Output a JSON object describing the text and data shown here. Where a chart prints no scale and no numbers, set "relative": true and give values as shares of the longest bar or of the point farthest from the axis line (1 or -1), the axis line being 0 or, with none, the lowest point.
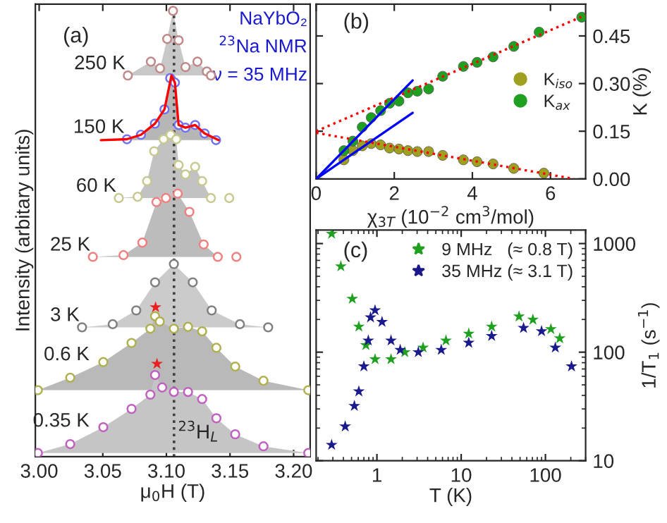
{
  "chart_data": [
    {
      "type": "scatter",
      "title": "(a)",
      "xlabel": "μ$_{0}$H (T)",
      "ylabel": "Intensity (arbitary units)",
      "relative": true,
      "tick_labels": "x",
      "marker": "circle",
      "legend": false,
      "xlim": [
        2.997,
        3.213
      ],
      "xticks": [
        {
          "value": 3.0,
          "label": "3.00"
        },
        {
          "value": 3.05,
          "label": "3.05"
        },
        {
          "value": 3.1,
          "label": "3.10"
        },
        {
          "value": 3.15,
          "label": "3.15"
        },
        {
          "value": 3.2,
          "label": "3.20"
        }
      ],
      "annotations": [
        "NaYbO₂",
        "$^{23}$Na NMR",
        "ν = 35 MHz"
      ],
      "ref_lines": [
        {
          "axis": "x",
          "value": 3.106,
          "label": "$^{23}$H$_{L}$",
          "color": "#404040",
          "line_style": "dotted"
        }
      ],
      "series": [
        {
          "name": "250 K",
          "color": "#c08888",
          "x": [
            3.0697,
            3.0878,
            3.095,
            3.1006,
            3.1052,
            3.1096,
            3.115,
            3.1244,
            3.1318,
            3.135
          ],
          "values": [
            0.855,
            0.886,
            0.871,
            0.937,
            1.0,
            0.934,
            0.874,
            0.886,
            0.864,
            0.855
          ],
          "lower": [
            0.855,
            0.855,
            0.855,
            0.855,
            0.855,
            0.855,
            0.855,
            0.855,
            0.855,
            0.855
          ],
          "upper": [
            0.855,
            0.886,
            0.871,
            0.937,
            1.0,
            0.934,
            0.874,
            0.886,
            0.864,
            0.855
          ]
        },
        {
          "name": "150 K",
          "color": "#7070f0",
          "x": [
            3.069,
            3.08,
            3.091,
            3.0985,
            3.103,
            3.1067,
            3.1096,
            3.115,
            3.1226,
            3.13,
            3.139
          ],
          "values": [
            0.712,
            0.722,
            0.747,
            0.779,
            0.849,
            0.839,
            0.744,
            0.738,
            0.744,
            0.725,
            0.71
          ],
          "lower": [
            0.71,
            0.71,
            0.71,
            0.71,
            0.71,
            0.71,
            0.71,
            0.71,
            0.71,
            0.71,
            0.71
          ],
          "upper": [
            0.712,
            0.722,
            0.747,
            0.779,
            0.849,
            0.839,
            0.744,
            0.738,
            0.744,
            0.725,
            0.71
          ]
        },
        {
          "type": "line",
          "color": "#ff0000",
          "marker": "none",
          "x": [
            3.0485,
            3.069,
            3.08,
            3.091,
            3.0985,
            3.104,
            3.1067,
            3.1096,
            3.115,
            3.1226,
            3.13,
            3.141
          ],
          "values": [
            0.71,
            0.712,
            0.722,
            0.747,
            0.779,
            0.855,
            0.839,
            0.744,
            0.738,
            0.744,
            0.725,
            0.71
          ]
        },
        {
          "name": "60 K",
          "color": "#c8c890",
          "x": [
            3.0626,
            3.0774,
            3.0848,
            3.0904,
            3.0978,
            3.1033,
            3.1078,
            3.1096,
            3.115,
            3.1226,
            3.1281,
            3.135,
            3.1494
          ],
          "values": [
            0.58,
            0.583,
            0.618,
            0.685,
            0.712,
            0.722,
            0.712,
            0.654,
            0.633,
            0.65,
            0.618,
            0.58,
            0.58
          ],
          "lower": [
            0.58,
            0.58,
            0.58,
            0.58,
            0.58,
            0.58,
            0.58,
            0.58,
            0.58,
            0.58,
            0.58,
            0.58,
            0.58
          ],
          "upper": [
            0.58,
            0.583,
            0.618,
            0.685,
            0.712,
            0.722,
            0.712,
            0.654,
            0.633,
            0.65,
            0.618,
            0.58,
            0.58
          ]
        },
        {
          "name": "25 K",
          "color": "#f08080",
          "x": [
            3.0422,
            3.0663,
            3.0811,
            3.0922,
            3.0996,
            3.1089,
            3.1181,
            3.1293,
            3.1404,
            3.155
          ],
          "values": [
            0.448,
            0.452,
            0.48,
            0.571,
            0.58,
            0.59,
            0.549,
            0.476,
            0.448,
            0.448
          ],
          "lower": [
            0.448,
            0.448,
            0.448,
            0.448,
            0.448,
            0.448,
            0.448,
            0.448,
            0.448,
            0.448
          ],
          "upper": [
            0.448,
            0.452,
            0.48,
            0.571,
            0.58,
            0.59,
            0.549,
            0.476,
            0.448,
            0.448
          ]
        },
        {
          "name": "3 K",
          "color": "#808080",
          "x": [
            3.0337,
            3.0578,
            3.0763,
            3.0911,
            3.1059,
            3.1207,
            3.1356,
            3.1578,
            3.18
          ],
          "values": [
            0.29,
            0.297,
            0.328,
            0.391,
            0.432,
            0.391,
            0.328,
            0.297,
            0.29
          ],
          "lower": [
            0.29,
            0.29,
            0.29,
            0.29,
            0.29,
            0.29,
            0.29,
            0.29,
            0.29
          ],
          "upper": [
            0.29,
            0.297,
            0.328,
            0.391,
            0.432,
            0.391,
            0.328,
            0.297,
            0.29
          ]
        },
        {
          "name": "0.6 K",
          "color": "#b0b050",
          "x": [
            2.999,
            3.0244,
            3.0504,
            3.0726,
            3.0874,
            3.0911,
            3.0948,
            3.1059,
            3.117,
            3.1281,
            3.1393,
            3.1541,
            3.1763,
            3.2115
          ],
          "values": [
            0.149,
            0.177,
            0.212,
            0.255,
            0.287,
            0.315,
            0.303,
            0.287,
            0.291,
            0.281,
            0.244,
            0.202,
            0.17,
            0.149
          ],
          "lower": [
            0.149,
            0.149,
            0.149,
            0.149,
            0.149,
            0.149,
            0.149,
            0.149,
            0.149,
            0.149,
            0.149,
            0.149,
            0.149,
            0.149
          ],
          "upper": [
            0.149,
            0.177,
            0.212,
            0.255,
            0.287,
            0.315,
            0.303,
            0.287,
            0.291,
            0.281,
            0.244,
            0.202,
            0.17,
            0.149
          ]
        },
        {
          "name": "0.35 K",
          "color": "#c060c0",
          "x": [
            2.999,
            3.0244,
            3.0504,
            3.0726,
            3.0874,
            3.0911,
            3.0967,
            3.1059,
            3.117,
            3.1281,
            3.1393,
            3.1541,
            3.1763,
            3.2115
          ],
          "values": [
            0.008,
            0.028,
            0.066,
            0.107,
            0.139,
            0.183,
            0.155,
            0.145,
            0.145,
            0.129,
            0.086,
            0.05,
            0.023,
            0.008
          ],
          "lower": [
            0.008,
            0.008,
            0.008,
            0.008,
            0.008,
            0.008,
            0.008,
            0.008,
            0.008,
            0.008,
            0.008,
            0.008,
            0.008,
            0.008
          ],
          "upper": [
            0.008,
            0.028,
            0.066,
            0.107,
            0.139,
            0.183,
            0.155,
            0.145,
            0.145,
            0.129,
            0.086,
            0.05,
            0.023,
            0.008
          ]
        },
        {
          "color": "#e82020",
          "marker": "star",
          "x": [
            3.0915,
            3.0926
          ],
          "values": [
            0.335,
            0.208
          ]
        }
      ]
    },
    {
      "type": "scatter",
      "title": "(b)",
      "xlabel": "χ$_{3T}$ (10$^{−2}$ cm$^{3}$/mol)",
      "ylabel": "K (%)",
      "marker": "circle",
      "legend": "center right",
      "xlim": [
        0,
        6.9
      ],
      "xticks": [
        0,
        2,
        4,
        6
      ],
      "ylim": [
        0,
        0.55
      ],
      "yticks": [
        {
          "value": 0,
          "label": "0.00"
        },
        {
          "value": 0.15,
          "label": "0.15"
        },
        {
          "value": 0.3,
          "label": "0.30"
        },
        {
          "value": 0.45,
          "label": "0.45"
        }
      ],
      "series": [
        {
          "type": "line",
          "color": "#ff0000",
          "marker": "none",
          "line_style": "dotted",
          "x": [
            0,
            6.9
          ],
          "values": [
            0.15,
            0.516
          ]
        },
        {
          "type": "line",
          "color": "#ff0000",
          "marker": "none",
          "line_style": "dotted",
          "x": [
            0,
            6.6
          ],
          "values": [
            0.145,
            0
          ]
        },
        {
          "type": "line",
          "color": "#0000ff",
          "marker": "none",
          "line_style": "solid",
          "x": [
            0,
            2.47
          ],
          "values": [
            0,
            0.31
          ]
        },
        {
          "type": "line",
          "color": "#0000ff",
          "marker": "none",
          "line_style": "solid",
          "x": [
            0,
            2.47
          ],
          "values": [
            0,
            0.208
          ]
        },
        {
          "name": "K$_{iso}$",
          "color": "#a0a020",
          "x": [
            0.71,
            0.94,
            1.18,
            1.41,
            1.65,
            1.88,
            2.12,
            2.35,
            2.59,
            2.88,
            3.24,
            3.77,
            4.12,
            4.53,
            5.06,
            5.83
          ],
          "values": [
            0.06,
            0.089,
            0.104,
            0.111,
            0.107,
            0.097,
            0.094,
            0.089,
            0.086,
            0.086,
            0.074,
            0.06,
            0.054,
            0.047,
            0.033,
            0.018
          ]
        },
        {
          "name": "K$_{ax}$",
          "color": "#20a020",
          "x": [
            0.71,
            0.94,
            1.18,
            1.41,
            1.65,
            1.88,
            2.12,
            2.35,
            2.59,
            2.88,
            3.24,
            3.77,
            4.12,
            4.53,
            5.06,
            5.71,
            6.8
          ],
          "values": [
            0.089,
            0.119,
            0.163,
            0.193,
            0.215,
            0.238,
            0.245,
            0.271,
            0.276,
            0.283,
            0.323,
            0.354,
            0.367,
            0.384,
            0.417,
            0.462,
            0.509
          ]
        }
      ]
    },
    {
      "type": "scatter",
      "title": "(c)",
      "xlabel": "T (K)",
      "ylabel": "1/T$_{1}$ (s$^{−1}$)",
      "marker": "star",
      "legend": "top right",
      "log": "xy",
      "xlim": [
        0.19,
        300
      ],
      "xticks": [
        1,
        10,
        100
      ],
      "ylim": [
        10,
        1330
      ],
      "yticks": [
        10,
        100,
        1000
      ],
      "series": [
        {
          "name": "9 MHz   (≈ 0.8 T)",
          "color": "#20a020",
          "x": [
            0.29,
            0.373,
            0.51,
            0.61,
            0.74,
            0.95,
            1.47,
            2.14,
            3.53,
            6.6,
            12.3,
            23,
            48.6,
            71,
            116,
            148
          ],
          "values": [
            1230,
            617,
            310,
            172,
            116,
            86,
            86,
            100,
            110,
            128,
            148,
            172,
            213,
            199,
            163,
            134
          ]
        },
        {
          "name": "35 MHz (≈ 3.1 T)",
          "color": "#1a1a8c",
          "x": [
            0.29,
            0.42,
            0.54,
            0.61,
            0.7,
            0.79,
            0.84,
            0.95,
            1.15,
            1.47,
            1.89,
            3.1,
            5.8,
            12.3,
            23,
            55,
            90,
            131,
            204
          ],
          "values": [
            14,
            20.7,
            32,
            43.5,
            74,
            128,
            209,
            243,
            190,
            128,
            105,
            100,
            105,
            122,
            141,
            167,
            156,
            110,
            74
          ]
        }
      ]
    }
  ]
}
